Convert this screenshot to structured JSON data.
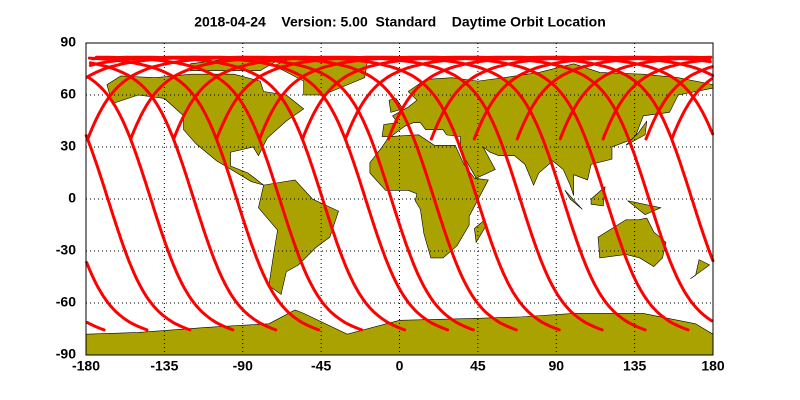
{
  "title": "2018-04-24    Version: 5.00  Standard    Daytime Orbit Location",
  "map": {
    "xlim": [
      -180,
      180
    ],
    "ylim": [
      -90,
      90
    ],
    "xticks": [
      -180,
      -135,
      -90,
      -45,
      0,
      45,
      90,
      135,
      180
    ],
    "yticks": [
      -90,
      -60,
      -30,
      0,
      30,
      60,
      90
    ]
  }
}
